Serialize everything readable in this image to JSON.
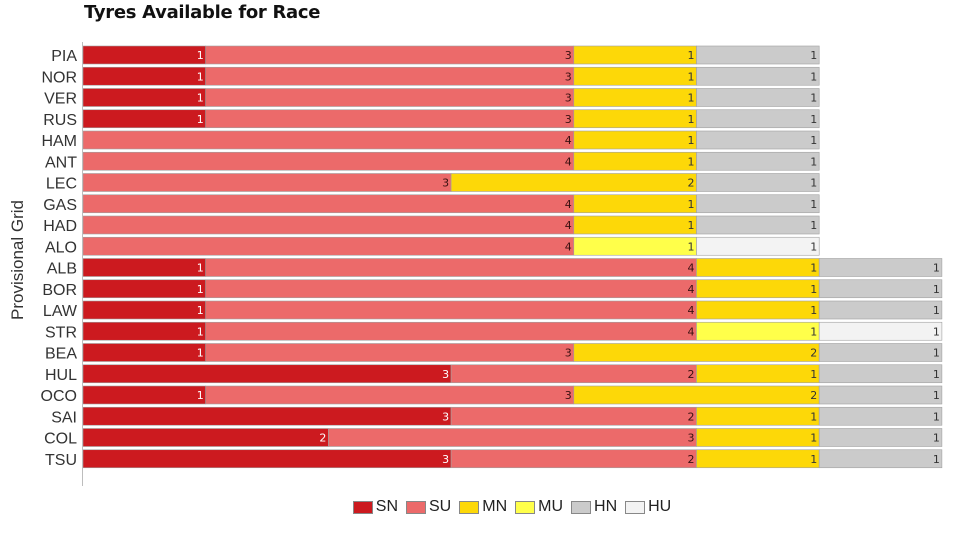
{
  "chart_data": {
    "type": "bar",
    "orientation": "horizontal",
    "stacked": true,
    "title": "Tyres Available for Race",
    "ylabel": "Provisional Grid",
    "xlabel": "",
    "categories": [
      "PIA",
      "NOR",
      "VER",
      "RUS",
      "HAM",
      "ANT",
      "LEC",
      "GAS",
      "HAD",
      "ALO",
      "ALB",
      "BOR",
      "LAW",
      "STR",
      "BEA",
      "HUL",
      "OCO",
      "SAI",
      "COL",
      "TSU"
    ],
    "series": [
      {
        "name": "SN",
        "color": "#cc1a1f",
        "values": [
          1,
          1,
          1,
          1,
          0,
          0,
          0,
          0,
          0,
          0,
          1,
          1,
          1,
          1,
          1,
          3,
          1,
          3,
          2,
          3
        ]
      },
      {
        "name": "SU",
        "color": "#ec6a6a",
        "values": [
          3,
          3,
          3,
          3,
          4,
          4,
          3,
          4,
          4,
          4,
          4,
          4,
          4,
          4,
          3,
          2,
          3,
          2,
          3,
          2
        ]
      },
      {
        "name": "MN",
        "color": "#fdd808",
        "values": [
          1,
          1,
          1,
          1,
          1,
          1,
          2,
          1,
          1,
          0,
          1,
          1,
          1,
          0,
          2,
          1,
          2,
          1,
          1,
          1
        ]
      },
      {
        "name": "MU",
        "color": "#ffff4a",
        "values": [
          0,
          0,
          0,
          0,
          0,
          0,
          0,
          0,
          0,
          1,
          0,
          0,
          0,
          1,
          0,
          0,
          0,
          0,
          0,
          0
        ]
      },
      {
        "name": "HN",
        "color": "#cbcbcb",
        "values": [
          1,
          1,
          1,
          1,
          1,
          1,
          1,
          1,
          1,
          0,
          1,
          1,
          1,
          0,
          1,
          1,
          1,
          1,
          1,
          1
        ]
      },
      {
        "name": "HU",
        "color": "#f3f3f3",
        "values": [
          0,
          0,
          0,
          0,
          0,
          0,
          0,
          0,
          0,
          1,
          0,
          0,
          0,
          1,
          0,
          0,
          0,
          0,
          0,
          0
        ]
      }
    ],
    "xlim": [
      0,
      7
    ],
    "grid": false,
    "legend": "bottom-center"
  }
}
